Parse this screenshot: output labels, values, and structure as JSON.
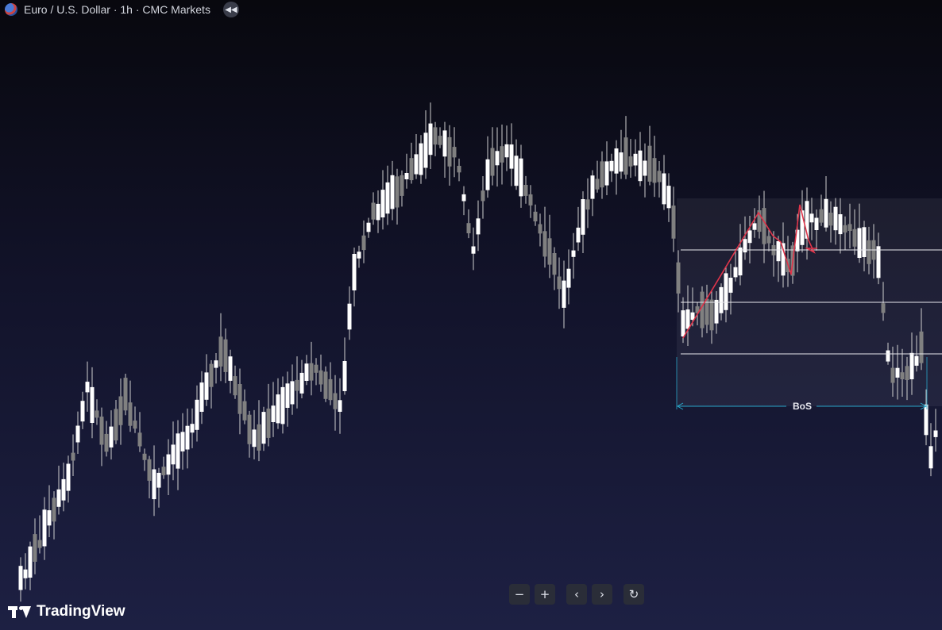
{
  "legend": {
    "symbol_title": "Euro / U.S. Dollar · 1h · CMC Markets"
  },
  "drawing": {
    "bos_label": "BoS",
    "colors": {
      "zigzag": "#e0344a",
      "bos_arrow": "#2aa6c9",
      "level_lines": "#e8e8ee",
      "zone_fill": "rgba(255,255,255,0.06)"
    }
  },
  "controls": {
    "zoom_out": "−",
    "zoom_in": "+",
    "scroll_left": "‹",
    "scroll_right": "›",
    "reset": "↻"
  },
  "brand": {
    "name": "TradingView"
  },
  "colors": {
    "candle_up": "#ffffff",
    "candle_down": "#808080",
    "wick": "#cfcfcf"
  }
}
